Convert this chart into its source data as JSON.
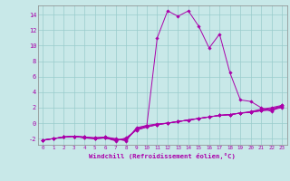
{
  "background_color": "#c8e8e8",
  "grid_color": "#99cccc",
  "line_color": "#aa00aa",
  "marker_color": "#aa00aa",
  "series": [
    [
      -2.2,
      -2.0,
      -1.8,
      -1.7,
      -1.8,
      -1.9,
      -1.8,
      -2.0,
      -2.3,
      -0.6,
      -0.3,
      11.0,
      14.5,
      13.8,
      14.5,
      12.5,
      9.7,
      11.5,
      6.5,
      3.0,
      2.8,
      2.0,
      1.5,
      2.3
    ],
    [
      -2.2,
      -2.0,
      -1.8,
      -1.7,
      -1.8,
      -1.9,
      -1.8,
      -2.1,
      -2.2,
      -0.7,
      -0.3,
      -0.1,
      0.0,
      0.2,
      0.4,
      0.6,
      0.8,
      1.0,
      1.1,
      1.3,
      1.5,
      1.8,
      2.0,
      2.3
    ],
    [
      -2.2,
      -2.0,
      -1.8,
      -1.7,
      -1.8,
      -2.0,
      -1.9,
      -2.2,
      -2.1,
      -0.8,
      -0.4,
      -0.2,
      0.0,
      0.2,
      0.4,
      0.6,
      0.8,
      1.0,
      1.1,
      1.3,
      1.4,
      1.7,
      1.9,
      2.2
    ],
    [
      -2.2,
      -2.0,
      -1.8,
      -1.7,
      -1.9,
      -2.0,
      -1.9,
      -2.2,
      -2.0,
      -0.9,
      -0.5,
      -0.2,
      0.0,
      0.2,
      0.4,
      0.6,
      0.8,
      1.0,
      1.1,
      1.3,
      1.4,
      1.6,
      1.8,
      2.1
    ],
    [
      -2.2,
      -2.0,
      -1.8,
      -1.7,
      -1.9,
      -2.0,
      -1.9,
      -2.3,
      -1.9,
      -0.9,
      -0.5,
      -0.2,
      0.0,
      0.2,
      0.4,
      0.6,
      0.8,
      1.0,
      1.1,
      1.3,
      1.4,
      1.6,
      1.7,
      2.0
    ]
  ],
  "xlim": [
    -0.5,
    23.5
  ],
  "ylim": [
    -2.8,
    15.2
  ],
  "yticks": [
    -2,
    0,
    2,
    4,
    6,
    8,
    10,
    12,
    14
  ],
  "xticks": [
    0,
    1,
    2,
    3,
    4,
    5,
    6,
    7,
    8,
    9,
    10,
    11,
    12,
    13,
    14,
    15,
    16,
    17,
    18,
    19,
    20,
    21,
    22,
    23
  ],
  "xlabel": "Windchill (Refroidissement éolien,°C)"
}
